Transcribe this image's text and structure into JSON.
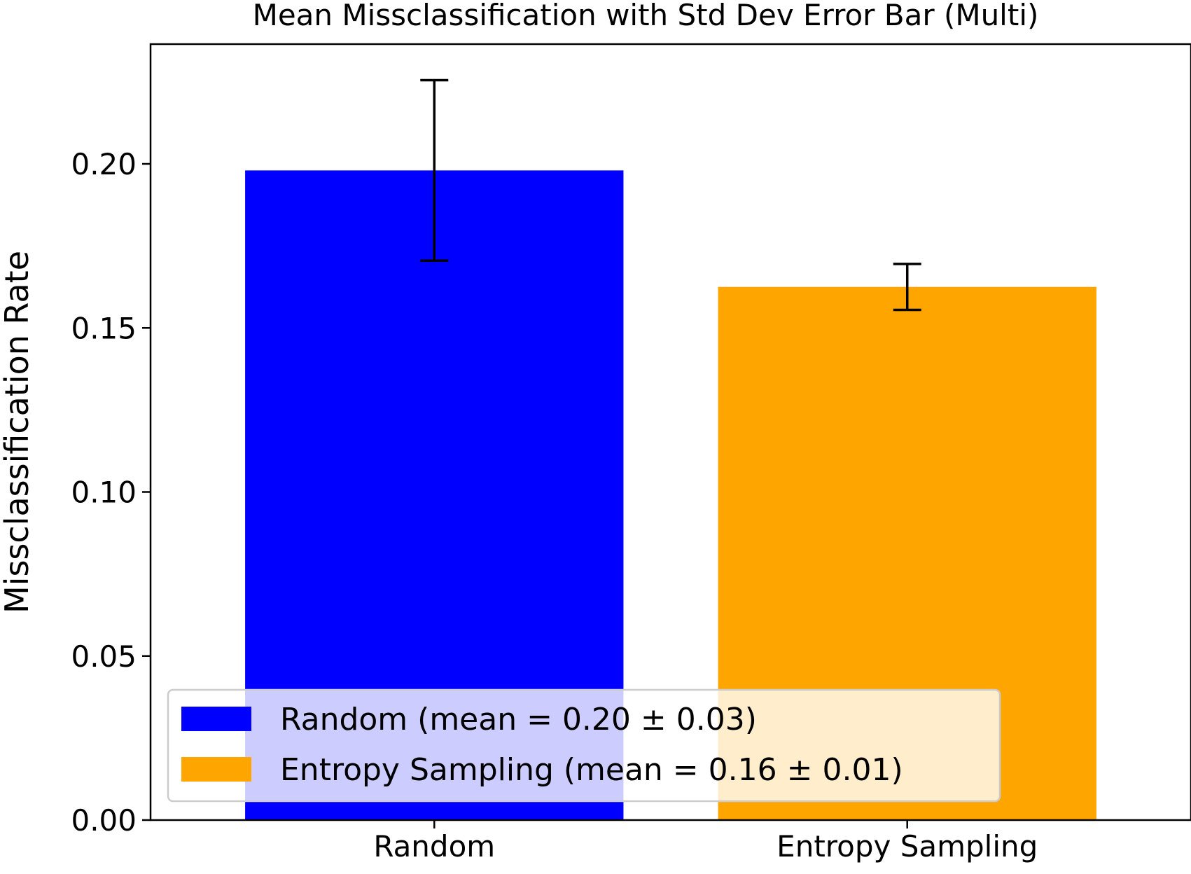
{
  "chart_data": {
    "type": "bar",
    "title": "Mean Missclassification with Std Dev Error Bar (Multi)",
    "xlabel": "",
    "ylabel": "Missclassification Rate",
    "categories": [
      "Random",
      "Entropy Sampling"
    ],
    "values": [
      0.198,
      0.1625
    ],
    "errors": [
      0.0275,
      0.007
    ],
    "colors": [
      "#0000ff",
      "#ffa500"
    ],
    "ylim": [
      0,
      0.2365
    ],
    "yticks": [
      0.0,
      0.05,
      0.1,
      0.15,
      0.2
    ],
    "ytick_labels": [
      "0.00",
      "0.05",
      "0.10",
      "0.15",
      "0.20"
    ],
    "grid": false,
    "legend": {
      "position": "lower-left",
      "entries": [
        {
          "label": "Random (mean = 0.20 ± 0.03)",
          "color": "#0000ff"
        },
        {
          "label": "Entropy Sampling (mean = 0.16 ± 0.01)",
          "color": "#ffa500"
        }
      ]
    }
  }
}
